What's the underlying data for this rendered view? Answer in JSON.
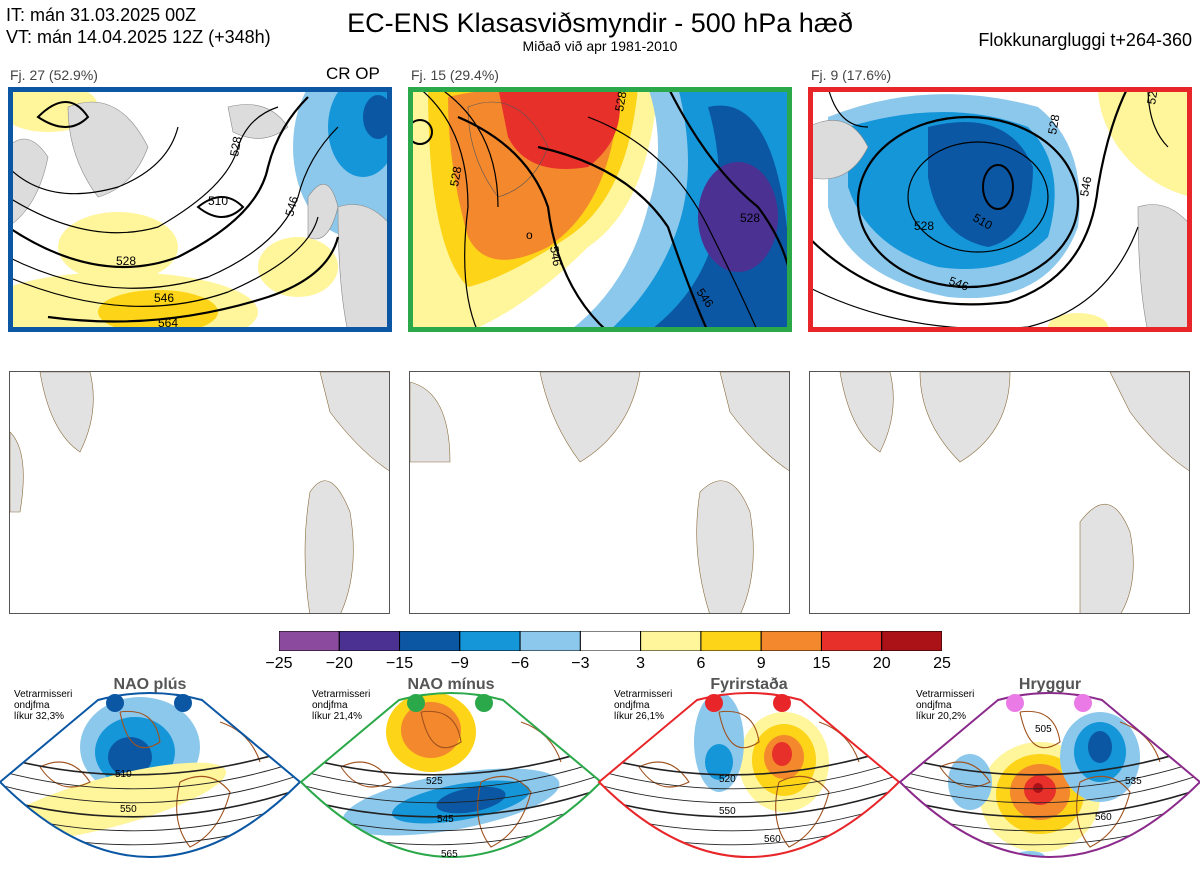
{
  "header": {
    "it_line": "IT: mán 31.03.2025 00Z",
    "vt_line": "VT: mán 14.04.2025 12Z  (+348h)",
    "title": "EC-ENS Klasasviðsmyndir - 500 hPa hæð",
    "subtitle": "Miðað við apr 1981-2010",
    "cluster_window": "Flokkunargluggi t+264-360"
  },
  "clusters": [
    {
      "label": "Fj. 27 (52.9%)",
      "tag": "CR OP",
      "border_color": "#0b57a4",
      "contour_labels": [
        "510",
        "528",
        "546",
        "528",
        "546",
        "564"
      ]
    },
    {
      "label": "Fj. 15 (29.4%)",
      "tag": "",
      "border_color": "#2aa84a",
      "contour_labels": [
        "528",
        "528",
        "546",
        "528",
        "546",
        "o"
      ]
    },
    {
      "label": "Fj. 9 (17.6%)",
      "tag": "",
      "border_color": "#e8262a",
      "contour_labels": [
        "528",
        "510",
        "528",
        "546",
        "528",
        "546"
      ]
    }
  ],
  "colorbar": {
    "ticks": [
      "−25",
      "−20",
      "−15",
      "−9",
      "−6",
      "−3",
      "3",
      "6",
      "9",
      "15",
      "20",
      "25"
    ],
    "colors": [
      "#8c4a9e",
      "#4b3192",
      "#0b57a4",
      "#1596d8",
      "#8cc8ec",
      "#ffffff",
      "#fff59a",
      "#fdd417",
      "#f4882d",
      "#e8302a",
      "#aa1218"
    ]
  },
  "regimes": [
    {
      "title": "NAO plús",
      "stat": [
        "Vetrarmisseri",
        "ondjfma",
        "líkur 32,3%"
      ],
      "border_color": "#0b57a4",
      "dot_color": "#0b57a4",
      "labels": [
        "510",
        "550"
      ]
    },
    {
      "title": "NAO mínus",
      "stat": [
        "Vetrarmisseri",
        "ondjfma",
        "líkur 21,4%"
      ],
      "border_color": "#2aa84a",
      "dot_color": "#2aa84a",
      "labels": [
        "525",
        "545",
        "565"
      ]
    },
    {
      "title": "Fyrirstaða",
      "stat": [
        "Vetrarmisseri",
        "ondjfma",
        "líkur 26,1%"
      ],
      "border_color": "#e8262a",
      "dot_color": "#e8262a",
      "labels": [
        "520",
        "550",
        "560"
      ]
    },
    {
      "title": "Hryggur",
      "stat": [
        "Vetrarmisseri",
        "ondjfma",
        "líkur 20,2%"
      ],
      "border_color": "#8b2a8b",
      "dot_color": "#ea7ae6",
      "labels": [
        "505",
        "535",
        "560"
      ]
    }
  ]
}
